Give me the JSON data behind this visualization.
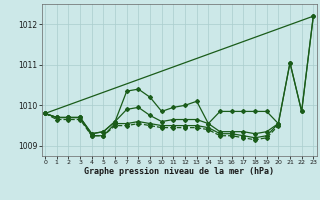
{
  "x": [
    0,
    1,
    2,
    3,
    4,
    5,
    6,
    7,
    8,
    9,
    10,
    11,
    12,
    13,
    14,
    15,
    16,
    17,
    18,
    19,
    20,
    21,
    22,
    23
  ],
  "line_upper_straight": [
    [
      0,
      1009.8
    ],
    [
      23,
      1012.2
    ]
  ],
  "line_main": [
    1009.8,
    1009.7,
    1009.7,
    1009.7,
    1009.3,
    1009.35,
    1009.6,
    1010.35,
    1010.4,
    1010.2,
    1009.85,
    1009.95,
    1010.0,
    1010.1,
    1009.55,
    1009.85,
    1009.85,
    1009.85,
    1009.85,
    1009.85,
    1009.55,
    1011.05,
    1009.85,
    1012.2
  ],
  "line_mid": [
    1009.8,
    1009.7,
    1009.7,
    1009.7,
    1009.3,
    1009.35,
    1009.6,
    1009.9,
    1009.95,
    1009.75,
    1009.6,
    1009.65,
    1009.65,
    1009.65,
    1009.55,
    1009.35,
    1009.35,
    1009.35,
    1009.3,
    1009.35,
    1009.55,
    1011.05,
    1009.85,
    1012.2
  ],
  "line_low1": [
    1009.8,
    1009.7,
    1009.7,
    1009.7,
    1009.25,
    1009.25,
    1009.55,
    1009.55,
    1009.6,
    1009.55,
    1009.5,
    1009.5,
    1009.5,
    1009.5,
    1009.45,
    1009.3,
    1009.3,
    1009.25,
    1009.2,
    1009.25,
    1009.55,
    null,
    null,
    null
  ],
  "line_low2": [
    1009.8,
    1009.7,
    1009.7,
    1009.7,
    1009.25,
    1009.25,
    1009.55,
    1009.55,
    1009.6,
    1009.55,
    1009.5,
    1009.5,
    1009.5,
    1009.5,
    1009.45,
    1009.3,
    1009.3,
    1009.25,
    1009.2,
    1009.25,
    1009.55,
    null,
    null,
    null
  ],
  "bg_color": "#cce8e8",
  "line_color": "#1a5c1a",
  "grid_color": "#aacece",
  "title": "Graphe pression niveau de la mer (hPa)",
  "ylim": [
    1008.75,
    1012.5
  ],
  "yticks": [
    1009,
    1010,
    1011,
    1012
  ],
  "xlim": [
    -0.3,
    23.3
  ]
}
